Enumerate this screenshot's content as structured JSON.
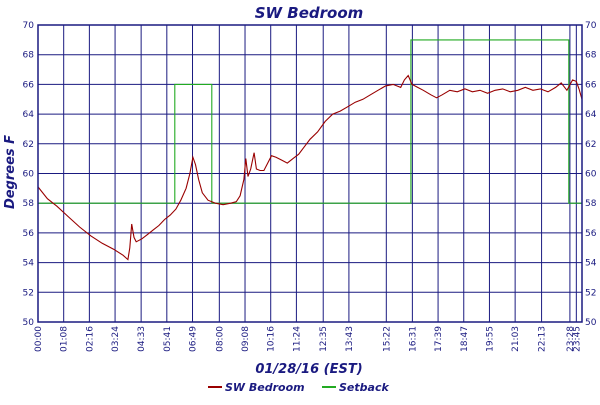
{
  "chart_data": {
    "type": "line",
    "title": "SW Bedroom",
    "xlabel": "01/28/16 (EST)",
    "ylabel": "Degrees F",
    "ylim": [
      50,
      70
    ],
    "y_ticks": [
      50,
      52,
      54,
      56,
      58,
      60,
      62,
      64,
      66,
      68,
      70
    ],
    "xlim": [
      0,
      1440
    ],
    "x_ticks": [
      {
        "t": 0,
        "label": "00:00"
      },
      {
        "t": 68,
        "label": "01:08"
      },
      {
        "t": 136,
        "label": "02:16"
      },
      {
        "t": 204,
        "label": "03:24"
      },
      {
        "t": 273,
        "label": "04:33"
      },
      {
        "t": 341,
        "label": "05:41"
      },
      {
        "t": 409,
        "label": "06:49"
      },
      {
        "t": 480,
        "label": "08:00"
      },
      {
        "t": 548,
        "label": "09:08"
      },
      {
        "t": 616,
        "label": "10:16"
      },
      {
        "t": 684,
        "label": "11:24"
      },
      {
        "t": 755,
        "label": "12:35"
      },
      {
        "t": 823,
        "label": "13:43"
      },
      {
        "t": 922,
        "label": "15:22"
      },
      {
        "t": 991,
        "label": "16:31"
      },
      {
        "t": 1059,
        "label": "17:39"
      },
      {
        "t": 1127,
        "label": "18:47"
      },
      {
        "t": 1195,
        "label": "19:55"
      },
      {
        "t": 1263,
        "label": "21:03"
      },
      {
        "t": 1333,
        "label": "22:13"
      },
      {
        "t": 1408,
        "label": "23:28"
      },
      {
        "t": 1425,
        "label": "23:45"
      }
    ],
    "grid": true,
    "legend_position": "bottom",
    "series": [
      {
        "name": "SW Bedroom",
        "color": "#990000",
        "points": [
          [
            0,
            59.1
          ],
          [
            25,
            58.3
          ],
          [
            50,
            57.8
          ],
          [
            80,
            57.1
          ],
          [
            110,
            56.4
          ],
          [
            140,
            55.8
          ],
          [
            170,
            55.3
          ],
          [
            200,
            54.9
          ],
          [
            225,
            54.5
          ],
          [
            238,
            54.2
          ],
          [
            243,
            55.0
          ],
          [
            248,
            56.6
          ],
          [
            254,
            55.7
          ],
          [
            260,
            55.4
          ],
          [
            275,
            55.6
          ],
          [
            290,
            55.9
          ],
          [
            305,
            56.2
          ],
          [
            320,
            56.5
          ],
          [
            335,
            56.9
          ],
          [
            350,
            57.2
          ],
          [
            365,
            57.6
          ],
          [
            378,
            58.2
          ],
          [
            392,
            59.0
          ],
          [
            402,
            60.0
          ],
          [
            410,
            61.1
          ],
          [
            417,
            60.6
          ],
          [
            425,
            59.6
          ],
          [
            435,
            58.7
          ],
          [
            450,
            58.2
          ],
          [
            470,
            58.0
          ],
          [
            490,
            57.9
          ],
          [
            510,
            58.0
          ],
          [
            525,
            58.1
          ],
          [
            535,
            58.5
          ],
          [
            545,
            59.6
          ],
          [
            550,
            61.0
          ],
          [
            556,
            59.8
          ],
          [
            563,
            60.3
          ],
          [
            572,
            61.4
          ],
          [
            578,
            60.3
          ],
          [
            588,
            60.2
          ],
          [
            598,
            60.2
          ],
          [
            608,
            60.7
          ],
          [
            618,
            61.2
          ],
          [
            630,
            61.1
          ],
          [
            645,
            60.9
          ],
          [
            660,
            60.7
          ],
          [
            675,
            61.0
          ],
          [
            690,
            61.3
          ],
          [
            705,
            61.8
          ],
          [
            720,
            62.3
          ],
          [
            740,
            62.8
          ],
          [
            760,
            63.5
          ],
          [
            780,
            64.0
          ],
          [
            800,
            64.2
          ],
          [
            820,
            64.5
          ],
          [
            840,
            64.8
          ],
          [
            860,
            65.0
          ],
          [
            880,
            65.3
          ],
          [
            900,
            65.6
          ],
          [
            920,
            65.9
          ],
          [
            940,
            66.0
          ],
          [
            960,
            65.8
          ],
          [
            970,
            66.3
          ],
          [
            980,
            66.6
          ],
          [
            990,
            66.0
          ],
          [
            1005,
            65.8
          ],
          [
            1020,
            65.6
          ],
          [
            1040,
            65.3
          ],
          [
            1055,
            65.1
          ],
          [
            1070,
            65.3
          ],
          [
            1090,
            65.6
          ],
          [
            1110,
            65.5
          ],
          [
            1130,
            65.7
          ],
          [
            1150,
            65.5
          ],
          [
            1170,
            65.6
          ],
          [
            1190,
            65.4
          ],
          [
            1210,
            65.6
          ],
          [
            1230,
            65.7
          ],
          [
            1250,
            65.5
          ],
          [
            1270,
            65.6
          ],
          [
            1290,
            65.8
          ],
          [
            1310,
            65.6
          ],
          [
            1330,
            65.7
          ],
          [
            1350,
            65.5
          ],
          [
            1370,
            65.8
          ],
          [
            1385,
            66.1
          ],
          [
            1400,
            65.6
          ],
          [
            1415,
            66.3
          ],
          [
            1425,
            66.2
          ],
          [
            1432,
            65.7
          ],
          [
            1440,
            65.0
          ]
        ]
      },
      {
        "name": "Setback",
        "color": "#22aa22",
        "points": [
          [
            0,
            58
          ],
          [
            362,
            58
          ],
          [
            362,
            66
          ],
          [
            460,
            66
          ],
          [
            460,
            58
          ],
          [
            987,
            58
          ],
          [
            987,
            69
          ],
          [
            1405,
            69
          ],
          [
            1405,
            58
          ],
          [
            1440,
            58
          ]
        ]
      }
    ]
  },
  "legend": {
    "items": [
      {
        "label": "SW Bedroom",
        "color": "#990000"
      },
      {
        "label": "Setback",
        "color": "#22aa22"
      }
    ]
  }
}
